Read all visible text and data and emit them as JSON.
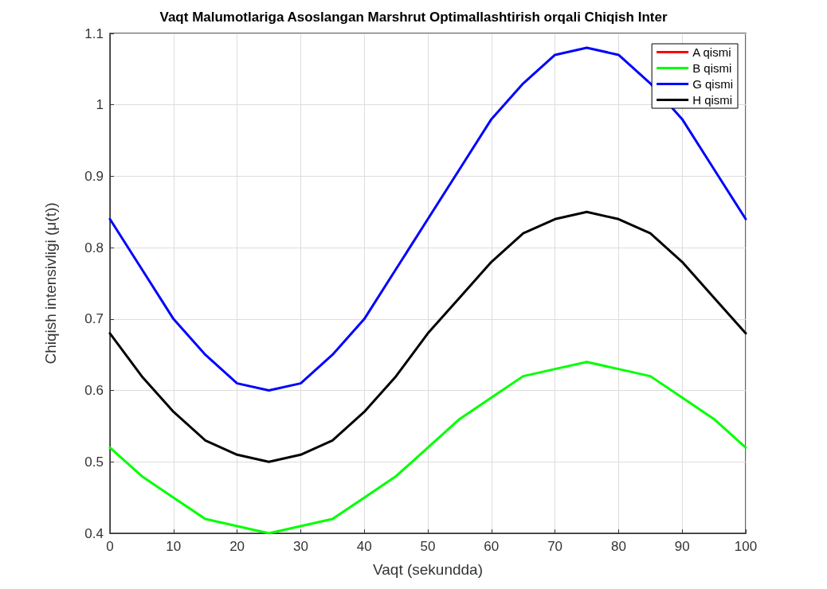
{
  "chart_data": {
    "type": "line",
    "title": "Vaqt Malumotlariga Asoslangan Marshrut Optimallashtirish orqali Chiqish Inter",
    "xlabel": "Vaqt (sekundda)",
    "ylabel": "Chiqish intensivligi (μ(t))",
    "x": [
      0,
      5,
      10,
      15,
      20,
      25,
      30,
      35,
      40,
      45,
      50,
      55,
      60,
      65,
      70,
      75,
      80,
      85,
      90,
      95,
      100
    ],
    "series": [
      {
        "name": "A qismi",
        "color": "#ff0000",
        "values": [
          null,
          null,
          null,
          null,
          null,
          null,
          null,
          null,
          null,
          null,
          null,
          null,
          null,
          null,
          null,
          null,
          null,
          null,
          null,
          null,
          null
        ]
      },
      {
        "name": "B qismi",
        "color": "#00ff00",
        "values": [
          0.52,
          0.48,
          0.45,
          0.42,
          0.41,
          0.4,
          0.41,
          0.42,
          0.45,
          0.48,
          0.52,
          0.56,
          0.59,
          0.62,
          0.63,
          0.64,
          0.63,
          0.62,
          0.59,
          0.56,
          0.52
        ]
      },
      {
        "name": "G qismi",
        "color": "#0000ff",
        "values": [
          0.84,
          0.77,
          0.7,
          0.65,
          0.61,
          0.6,
          0.61,
          0.65,
          0.7,
          0.77,
          0.84,
          0.91,
          0.98,
          1.03,
          1.07,
          1.08,
          1.07,
          1.03,
          0.98,
          0.91,
          0.84
        ]
      },
      {
        "name": "H qismi",
        "color": "#000000",
        "values": [
          0.68,
          0.62,
          0.57,
          0.53,
          0.51,
          0.5,
          0.51,
          0.53,
          0.57,
          0.62,
          0.68,
          0.73,
          0.78,
          0.82,
          0.84,
          0.85,
          0.84,
          0.82,
          0.78,
          0.73,
          0.68
        ]
      }
    ],
    "xlim": [
      0,
      100
    ],
    "xticks": [
      0,
      10,
      20,
      30,
      40,
      50,
      60,
      70,
      80,
      90,
      100
    ],
    "ylim": [
      0.4,
      1.1
    ],
    "yticks": [
      0.4,
      0.5,
      0.6,
      0.7,
      0.8,
      0.9,
      1,
      1.1
    ],
    "grid": true,
    "legend": "top right",
    "marker": "none",
    "line_style": "solid"
  }
}
